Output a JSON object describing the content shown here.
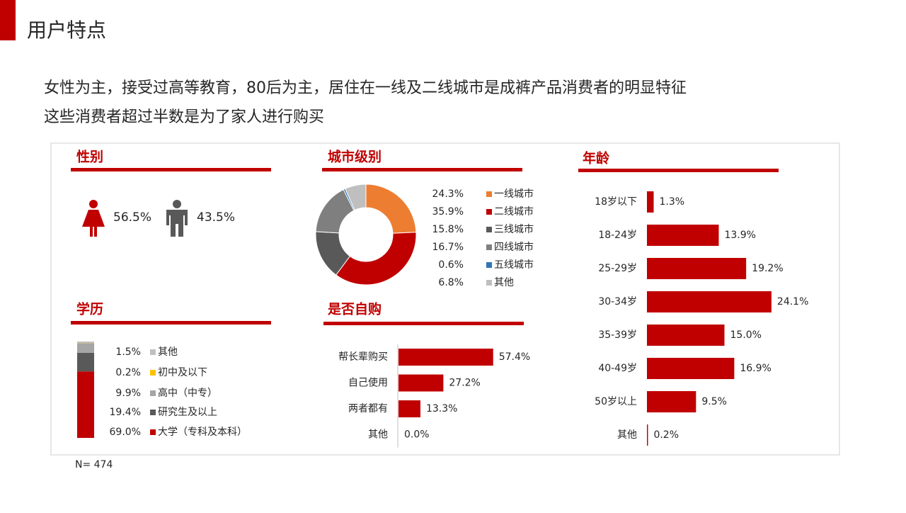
{
  "header": {
    "title": "用户特点",
    "subtitle": [
      "女性为主，接受过高等教育，80后为主，居住在一线及二线城市是成裤产品消费者的明显特征",
      "这些消费者超过半数是为了家人进行购买"
    ]
  },
  "note": "N= 474",
  "chart_data": [
    {
      "type": "icon",
      "title": "性别",
      "categories": [
        null,
        null
      ],
      "values": [
        56.5,
        43.5
      ],
      "value_labels": [
        "56.5%",
        "43.5%"
      ],
      "colors": [
        "#c00000",
        "#595959"
      ]
    },
    {
      "type": "donut",
      "title": "城市级别",
      "categories": [
        "一线城市",
        "二线城市",
        "三线城市",
        "四线城市",
        "五线城市",
        "其他"
      ],
      "values": [
        24.3,
        35.9,
        15.8,
        16.7,
        0.6,
        6.8
      ],
      "value_labels": [
        "24.3%",
        "35.9%",
        "15.8%",
        "16.7%",
        "0.6%",
        "6.8%"
      ],
      "colors": [
        "#ed7d31",
        "#c00000",
        "#595959",
        "#7f7f7f",
        "#2e75b6",
        "#bfbfbf"
      ]
    },
    {
      "type": "hbar",
      "title": "年龄",
      "categories": [
        "18岁以下",
        "18-24岁",
        "25-29岁",
        "30-34岁",
        "35-39岁",
        "40-49岁",
        "50岁以上",
        "其他"
      ],
      "values": [
        1.3,
        13.9,
        19.2,
        24.1,
        15.0,
        16.9,
        9.5,
        0.2
      ],
      "value_labels": [
        "1.3%",
        "13.9%",
        "19.2%",
        "24.1%",
        "15.0%",
        "16.9%",
        "9.5%",
        "0.2%"
      ],
      "color": "#c00000"
    },
    {
      "type": "stacked",
      "title": "学历",
      "series": [
        {
          "name": "其他",
          "color": "#bfbfbf",
          "values": [
            1.5
          ],
          "value_labels": [
            "1.5%"
          ]
        },
        {
          "name": "初中及以下",
          "color": "#ffc000",
          "values": [
            0.2
          ],
          "value_labels": [
            "0.2%"
          ]
        },
        {
          "name": "高中（中专）",
          "color": "#a5a5a5",
          "values": [
            9.9
          ],
          "value_labels": [
            "9.9%"
          ]
        },
        {
          "name": "研究生及以上",
          "color": "#595959",
          "values": [
            19.4
          ],
          "value_labels": [
            "19.4%"
          ]
        },
        {
          "name": "大学（专科及本科）",
          "color": "#c00000",
          "values": [
            69.0
          ],
          "value_labels": [
            "69.0%"
          ]
        }
      ]
    },
    {
      "type": "hbar",
      "title": "是否自购",
      "categories": [
        "帮长辈购买",
        "自己使用",
        "两者都有",
        "其他"
      ],
      "values": [
        57.4,
        27.2,
        13.3,
        0.0
      ],
      "value_labels": [
        "57.4%",
        "27.2%",
        "13.3%",
        "0.0%"
      ],
      "color": "#c00000"
    }
  ]
}
